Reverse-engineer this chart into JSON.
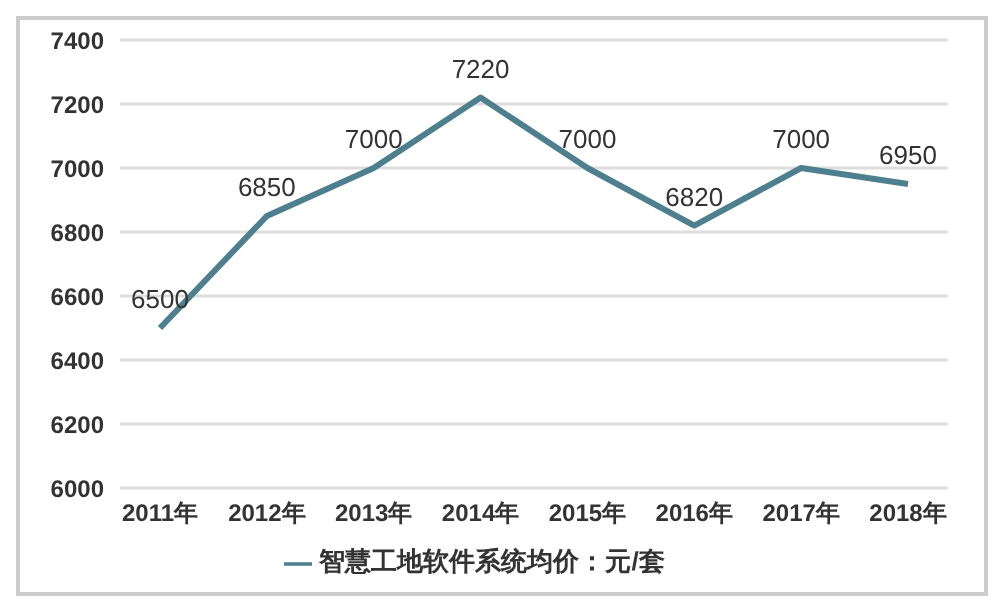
{
  "chart_data": {
    "type": "line",
    "categories": [
      "2011年",
      "2012年",
      "2013年",
      "2014年",
      "2015年",
      "2016年",
      "2017年",
      "2018年"
    ],
    "series": [
      {
        "name": "智慧工地软件系统均价：元/套",
        "color": "#4e7f8e",
        "values": [
          6500,
          6850,
          7000,
          7220,
          7000,
          6820,
          7000,
          6950
        ]
      }
    ],
    "ylim": [
      6000,
      7400
    ],
    "yticks": [
      6000,
      6200,
      6400,
      6600,
      6800,
      7000,
      7200,
      7400
    ],
    "grid": "y",
    "legend": "bottom",
    "data_labels": true,
    "marker": "none",
    "line_style": "solid"
  }
}
